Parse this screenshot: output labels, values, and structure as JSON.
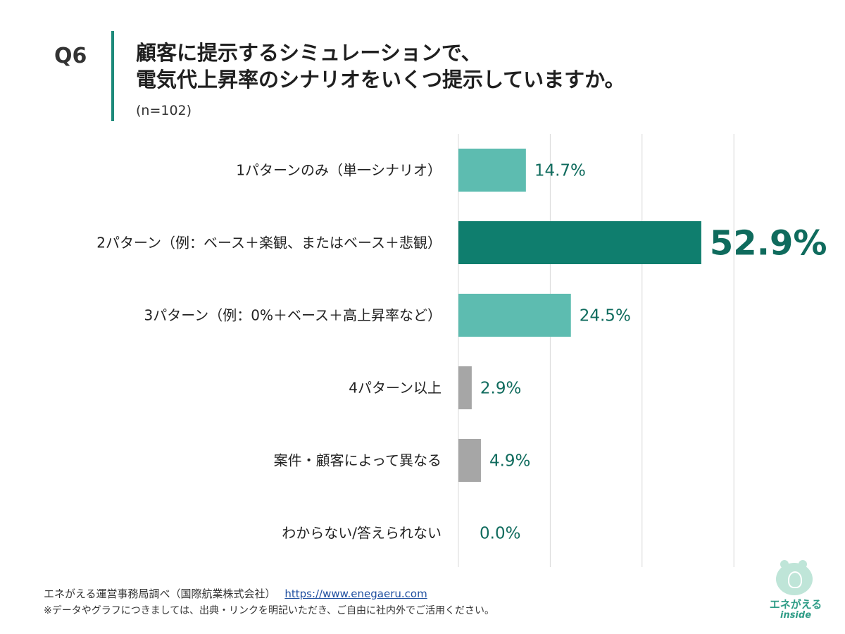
{
  "header": {
    "question_number": "Q6",
    "title_line1": "顧客に提示するシミュレーションで、",
    "title_line2": "電気代上昇率のシナリオをいくつ提示していますか。",
    "sample_size": "(n=102)"
  },
  "chart_data": {
    "type": "bar",
    "orientation": "horizontal",
    "categories": [
      "1パターンのみ（単一シナリオ）",
      "2パターン（例：ベース＋楽観、またはベース＋悲観）",
      "3パターン（例：0%＋ベース＋高上昇率など）",
      "4パターン以上",
      "案件・顧客によって異なる",
      "わからない/答えられない"
    ],
    "values": [
      14.7,
      52.9,
      24.5,
      2.9,
      4.9,
      0.0
    ],
    "value_labels": [
      "14.7%",
      "52.9%",
      "24.5%",
      "2.9%",
      "4.9%",
      "0.0%"
    ],
    "xlim": [
      0,
      60
    ],
    "grid": true,
    "highlight_index": 1,
    "colors": {
      "primary": "#5dbcb0",
      "highlight": "#0f7e6e",
      "other": "#a6a6a6",
      "label": "#0f6b5d",
      "grid": "#d9d9d9"
    },
    "bar_color_groups": [
      "primary",
      "highlight",
      "primary",
      "other",
      "other",
      "other"
    ]
  },
  "footer": {
    "source": "エネがえる運営事務局調べ（国際航業株式会社）",
    "link": "https://www.enegaeru.com",
    "note": "※データやグラフにつきましては、出典・リンクを明記いただき、ご自由に社内外でご活用ください。"
  },
  "logo": {
    "name": "エネがえる",
    "sub": "inside",
    "icon": "frog-lightbulb-icon"
  }
}
